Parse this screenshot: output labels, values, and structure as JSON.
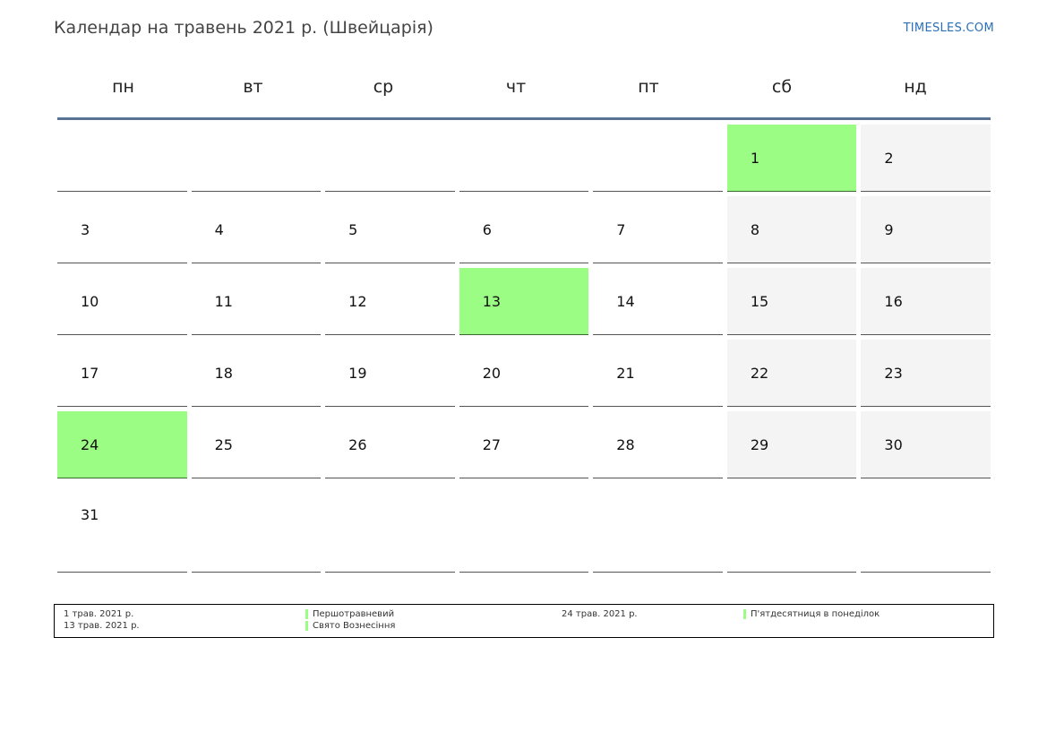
{
  "header": {
    "title": "Календар на травень 2021 р. (Швейцарія)",
    "brand": "TIMESLES.COM"
  },
  "weekdays": [
    "пн",
    "вт",
    "ср",
    "чт",
    "пт",
    "сб",
    "нд"
  ],
  "calendar": {
    "weeks": [
      [
        "",
        "",
        "",
        "",
        "",
        "1",
        "2"
      ],
      [
        "3",
        "4",
        "5",
        "6",
        "7",
        "8",
        "9"
      ],
      [
        "10",
        "11",
        "12",
        "13",
        "14",
        "15",
        "16"
      ],
      [
        "17",
        "18",
        "19",
        "20",
        "21",
        "22",
        "23"
      ],
      [
        "24",
        "25",
        "26",
        "27",
        "28",
        "29",
        "30"
      ],
      [
        "31",
        "",
        "",
        "",
        "",
        "",
        ""
      ]
    ],
    "holidays": [
      "1",
      "13",
      "24"
    ],
    "colors": {
      "holiday": "#9cfd84",
      "weekend": "#f4f4f4",
      "header_rule": "#5a7394",
      "brand": "#2a6fb8"
    }
  },
  "legend": {
    "entries": [
      {
        "date": "1 трав. 2021 р.",
        "name": "Першотравневий"
      },
      {
        "date": "13 трав. 2021 р.",
        "name": "Свято Вознесіння"
      },
      {
        "date": "24 трав. 2021 р.",
        "name": "П'ятдесятниця в понеділок"
      }
    ]
  }
}
